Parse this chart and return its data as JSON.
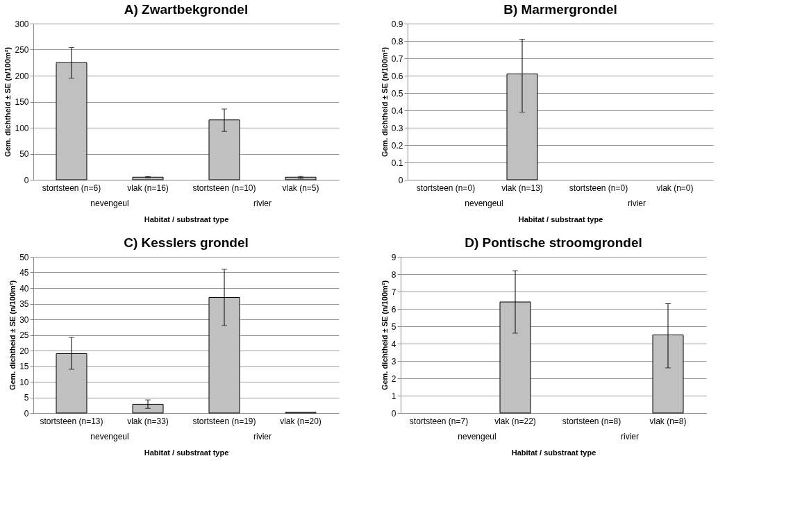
{
  "chart_data": [
    {
      "type": "bar",
      "title": "A) Zwartbekgrondel",
      "xlabel": "Habitat / substraat type",
      "ylabel": "Gem. dichtheid ± SE (n/100m²)",
      "categories": [
        "stortsteen (n=6)",
        "vlak (n=16)",
        "stortsteen (n=10)",
        "vlak (n=5)"
      ],
      "values": [
        225,
        5,
        115,
        5
      ],
      "errors": [
        [
          195,
          254
        ],
        [
          4,
          6
        ],
        [
          93,
          136
        ],
        [
          2.6,
          6.3
        ]
      ],
      "color": "#c0c0c0",
      "ylim": [
        0,
        300
      ],
      "yticks": [
        0,
        50,
        100,
        150,
        200,
        250,
        300
      ],
      "grid": "y",
      "annotations": [
        "nevengeul",
        "rivier"
      ]
    },
    {
      "type": "bar",
      "title": "B) Marmergrondel",
      "xlabel": "Habitat / substraat type",
      "ylabel": "Gem. dichtheid ± SE (n/100m²)",
      "categories": [
        "stortsteen (n=0)",
        "vlak (n=13)",
        "stortsteen (n=0)",
        "vlak (n=0)"
      ],
      "values": [
        0,
        0.61,
        0,
        0
      ],
      "errors": [
        null,
        [
          0.39,
          0.81
        ],
        null,
        null
      ],
      "color": "#c0c0c0",
      "ylim": [
        0,
        0.9
      ],
      "yticks": [
        0,
        0.1,
        0.2,
        0.3,
        0.4,
        0.5,
        0.6,
        0.7,
        0.8,
        0.9
      ],
      "grid": "y",
      "annotations": [
        "nevengeul",
        "rivier"
      ]
    },
    {
      "type": "bar",
      "title": "C) Kesslers grondel",
      "xlabel": "Habitat / substraat type",
      "ylabel": "Gem. dichtheid ± SE (n/100m²)",
      "categories": [
        "stortsteen (n=13)",
        "vlak (n=33)",
        "stortsteen (n=19)",
        "vlak (n=20)"
      ],
      "values": [
        19,
        2.8,
        37,
        0.2
      ],
      "errors": [
        [
          14,
          24.2
        ],
        [
          1.5,
          4.2
        ],
        [
          28,
          46
        ],
        null
      ],
      "color": "#c0c0c0",
      "ylim": [
        0,
        50
      ],
      "yticks": [
        0,
        5,
        10,
        15,
        20,
        25,
        30,
        35,
        40,
        45,
        50
      ],
      "grid": "y",
      "annotations": [
        "nevengeul",
        "rivier"
      ]
    },
    {
      "type": "bar",
      "title": "D) Pontische stroomgrondel",
      "xlabel": "Habitat / substraat type",
      "ylabel": "Gem. dichtheid ± SE (n/100m²)",
      "categories": [
        "stortsteen (n=7)",
        "vlak (n=22)",
        "stortsteen (n=8)",
        "vlak (n=8)"
      ],
      "values": [
        0,
        6.4,
        0,
        4.5
      ],
      "errors": [
        null,
        [
          4.6,
          8.2
        ],
        null,
        [
          2.6,
          6.3
        ]
      ],
      "color": "#c0c0c0",
      "ylim": [
        0,
        9
      ],
      "yticks": [
        0,
        1,
        2,
        3,
        4,
        5,
        6,
        7,
        8,
        9
      ],
      "grid": "y",
      "annotations": [
        "nevengeul",
        "rivier"
      ]
    }
  ]
}
